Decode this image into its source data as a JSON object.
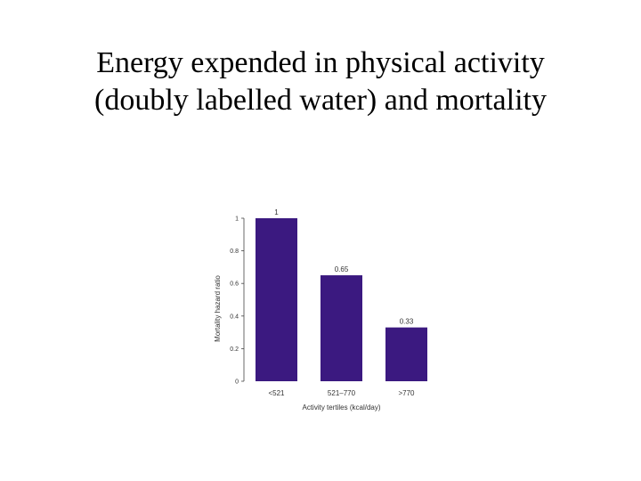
{
  "slide": {
    "title_line1": "Energy expended in physical activity",
    "title_line2": "(doubly labelled water) and mortality"
  },
  "chart_data": {
    "type": "bar",
    "categories": [
      "<521",
      "521–770",
      ">770"
    ],
    "values": [
      1,
      0.65,
      0.33
    ],
    "data_labels": [
      "1",
      "0.65",
      "0.33"
    ],
    "xlabel": "Activity tertiles (kcal/day)",
    "ylabel": "Mortality hazard ratio",
    "ylim": [
      0,
      1
    ],
    "yticks": [
      0,
      0.2,
      0.4,
      0.6,
      0.8,
      1
    ],
    "ytick_labels": [
      "0",
      "0.2",
      "0.4",
      "0.6",
      "0.8",
      "1"
    ],
    "grid": false,
    "legend": "none",
    "bar_color": "#3b1980"
  }
}
